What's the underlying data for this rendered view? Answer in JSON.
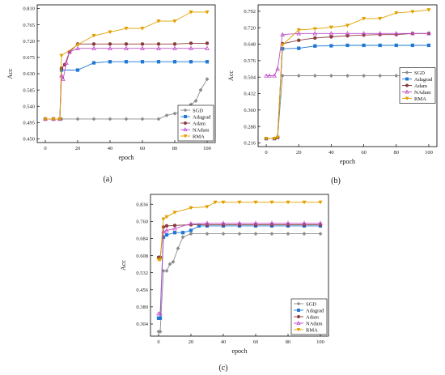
{
  "chart_data": [
    {
      "type": "line",
      "panel_label": "(a)",
      "xlabel": "epoch",
      "ylabel": "Acc",
      "xlim": [
        -5,
        105
      ],
      "ylim": [
        0.44,
        0.82
      ],
      "xticks": [
        "0",
        "20",
        "40",
        "60",
        "80",
        "100"
      ],
      "yticks": [
        "0.450",
        "0.495",
        "0.540",
        "0.585",
        "0.630",
        "0.675",
        "0.720",
        "0.765",
        "0.810"
      ],
      "legend_position": "bottom-right",
      "series": [
        {
          "name": "SGD",
          "color": "#8c8c8c",
          "marker": "diamond",
          "x": [
            0,
            5,
            10,
            20,
            30,
            40,
            50,
            60,
            70,
            75,
            80,
            85,
            90,
            93,
            96,
            100
          ],
          "y": [
            0.505,
            0.505,
            0.505,
            0.505,
            0.505,
            0.505,
            0.505,
            0.505,
            0.505,
            0.515,
            0.52,
            0.525,
            0.545,
            0.555,
            0.585,
            0.615
          ]
        },
        {
          "name": "Adagrad",
          "color": "#1f77d4",
          "marker": "square",
          "x": [
            0,
            5,
            9,
            10,
            20,
            30,
            40,
            50,
            60,
            70,
            80,
            90,
            100
          ],
          "y": [
            0.505,
            0.505,
            0.505,
            0.64,
            0.64,
            0.66,
            0.663,
            0.663,
            0.663,
            0.663,
            0.663,
            0.663,
            0.663
          ]
        },
        {
          "name": "Adam",
          "color": "#8b3a3a",
          "marker": "circle",
          "x": [
            0,
            5,
            9,
            10,
            12,
            15,
            20,
            30,
            40,
            50,
            60,
            70,
            80,
            90,
            100
          ],
          "y": [
            0.505,
            0.505,
            0.505,
            0.645,
            0.655,
            0.69,
            0.712,
            0.712,
            0.712,
            0.712,
            0.712,
            0.712,
            0.712,
            0.714,
            0.714
          ]
        },
        {
          "name": "NAdam",
          "color": "#c050c8",
          "marker": "triangle-up",
          "x": [
            0,
            5,
            9,
            10,
            11,
            13,
            15,
            20,
            30,
            40,
            50,
            60,
            70,
            80,
            90,
            100
          ],
          "y": [
            0.505,
            0.505,
            0.505,
            0.625,
            0.615,
            0.66,
            0.69,
            0.7,
            0.7,
            0.7,
            0.7,
            0.7,
            0.7,
            0.7,
            0.7,
            0.7
          ]
        },
        {
          "name": "RMA",
          "color": "#e0a000",
          "marker": "triangle-down",
          "x": [
            0,
            5,
            9,
            10,
            20,
            30,
            40,
            50,
            60,
            70,
            80,
            90,
            100
          ],
          "y": [
            0.505,
            0.505,
            0.505,
            0.68,
            0.71,
            0.735,
            0.745,
            0.755,
            0.755,
            0.775,
            0.775,
            0.8,
            0.8
          ]
        }
      ]
    },
    {
      "type": "line",
      "panel_label": "(b)",
      "xlabel": "epoch",
      "ylabel": "Acc",
      "xlim": [
        -5,
        105
      ],
      "ylim": [
        0.2,
        0.82
      ],
      "xticks": [
        "0",
        "20",
        "40",
        "60",
        "80",
        "100"
      ],
      "yticks": [
        "0.216",
        "0.288",
        "0.360",
        "0.432",
        "0.504",
        "0.576",
        "0.648",
        "0.720",
        "0.792"
      ],
      "legend_position": "right",
      "series": [
        {
          "name": "SGD",
          "color": "#8c8c8c",
          "marker": "diamond",
          "x": [
            0,
            5,
            7,
            10,
            20,
            30,
            40,
            50,
            60,
            70,
            80,
            90,
            100
          ],
          "y": [
            0.235,
            0.235,
            0.24,
            0.51,
            0.51,
            0.51,
            0.51,
            0.51,
            0.51,
            0.51,
            0.51,
            0.51,
            0.51
          ]
        },
        {
          "name": "Adagrad",
          "color": "#1f77d4",
          "marker": "square",
          "x": [
            0,
            5,
            7,
            10,
            20,
            30,
            40,
            50,
            60,
            70,
            80,
            90,
            100
          ],
          "y": [
            0.235,
            0.235,
            0.24,
            0.628,
            0.63,
            0.64,
            0.641,
            0.643,
            0.643,
            0.643,
            0.643,
            0.643,
            0.643
          ]
        },
        {
          "name": "Adam",
          "color": "#8b3a3a",
          "marker": "circle",
          "x": [
            0,
            5,
            7,
            10,
            20,
            30,
            40,
            50,
            60,
            70,
            80,
            90,
            100
          ],
          "y": [
            0.235,
            0.235,
            0.24,
            0.65,
            0.665,
            0.675,
            0.68,
            0.685,
            0.688,
            0.69,
            0.69,
            0.695,
            0.695
          ]
        },
        {
          "name": "NAdam",
          "color": "#c050c8",
          "marker": "triangle-up",
          "x": [
            0,
            2,
            5,
            7,
            10,
            20,
            30,
            40,
            50,
            60,
            70,
            80,
            90,
            100
          ],
          "y": [
            0.51,
            0.51,
            0.51,
            0.54,
            0.69,
            0.695,
            0.695,
            0.695,
            0.695,
            0.695,
            0.695,
            0.695,
            0.695,
            0.695
          ]
        },
        {
          "name": "RMA",
          "color": "#e0a000",
          "marker": "triangle-down",
          "x": [
            0,
            5,
            7,
            10,
            20,
            30,
            40,
            50,
            60,
            70,
            80,
            90,
            100
          ],
          "y": [
            0.235,
            0.235,
            0.24,
            0.645,
            0.71,
            0.715,
            0.722,
            0.73,
            0.76,
            0.76,
            0.785,
            0.79,
            0.798
          ]
        }
      ]
    },
    {
      "type": "line",
      "panel_label": "(c)",
      "xlabel": "epoch",
      "ylabel": "Acc",
      "xlim": [
        -5,
        105
      ],
      "ylim": [
        0.25,
        0.88
      ],
      "xticks": [
        "0",
        "20",
        "40",
        "60",
        "80",
        "100"
      ],
      "yticks": [
        "0.304",
        "0.380",
        "0.456",
        "0.532",
        "0.608",
        "0.684",
        "0.760",
        "0.836"
      ],
      "legend_position": "bottom-right",
      "series": [
        {
          "name": "SGD",
          "color": "#8c8c8c",
          "marker": "diamond",
          "x": [
            0,
            1,
            3,
            5,
            7,
            9,
            12,
            15,
            20,
            30,
            40,
            50,
            60,
            70,
            80,
            90,
            100
          ],
          "y": [
            0.27,
            0.27,
            0.54,
            0.54,
            0.57,
            0.58,
            0.64,
            0.69,
            0.705,
            0.705,
            0.705,
            0.705,
            0.705,
            0.705,
            0.705,
            0.705,
            0.705
          ]
        },
        {
          "name": "Adagrad",
          "color": "#1f77d4",
          "marker": "square",
          "x": [
            0,
            1,
            3,
            5,
            10,
            15,
            20,
            25,
            30,
            40,
            50,
            60,
            70,
            80,
            90,
            100
          ],
          "y": [
            0.33,
            0.33,
            0.69,
            0.7,
            0.71,
            0.71,
            0.72,
            0.74,
            0.74,
            0.74,
            0.74,
            0.74,
            0.74,
            0.74,
            0.74,
            0.74
          ]
        },
        {
          "name": "Adam",
          "color": "#8b3a3a",
          "marker": "circle",
          "x": [
            0,
            1,
            3,
            5,
            10,
            20,
            30,
            40,
            50,
            60,
            70,
            80,
            90,
            100
          ],
          "y": [
            0.6,
            0.6,
            0.735,
            0.74,
            0.742,
            0.745,
            0.745,
            0.745,
            0.745,
            0.745,
            0.745,
            0.745,
            0.745,
            0.745
          ]
        },
        {
          "name": "NAdam",
          "color": "#c050c8",
          "marker": "triangle-up",
          "x": [
            0,
            1,
            3,
            5,
            10,
            20,
            30,
            40,
            50,
            60,
            70,
            80,
            90,
            100
          ],
          "y": [
            0.35,
            0.35,
            0.715,
            0.72,
            0.728,
            0.75,
            0.752,
            0.752,
            0.752,
            0.752,
            0.752,
            0.752,
            0.752,
            0.752
          ]
        },
        {
          "name": "RMA",
          "color": "#e0a000",
          "marker": "triangle-down",
          "x": [
            0,
            1,
            3,
            5,
            10,
            20,
            30,
            35,
            40,
            50,
            60,
            70,
            80,
            90,
            100
          ],
          "y": [
            0.59,
            0.59,
            0.77,
            0.78,
            0.8,
            0.82,
            0.825,
            0.845,
            0.845,
            0.845,
            0.845,
            0.845,
            0.845,
            0.845,
            0.845
          ]
        }
      ]
    }
  ]
}
